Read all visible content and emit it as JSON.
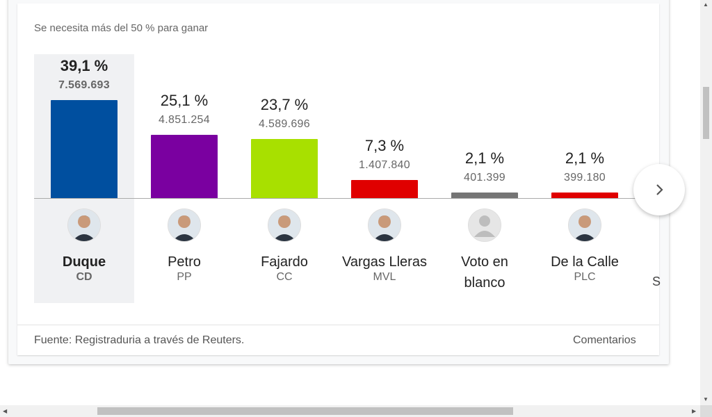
{
  "subtitle": "Se necesita más del 50 % para ganar",
  "candidates": [
    {
      "name": "Duque",
      "party": "CD",
      "pct": "39,1 %",
      "votes": "7.569.693",
      "share": 39.1,
      "color": "#004f9f",
      "selected": true
    },
    {
      "name": "Petro",
      "party": "PP",
      "pct": "25,1 %",
      "votes": "4.851.254",
      "share": 25.1,
      "color": "#7a00a0",
      "selected": false
    },
    {
      "name": "Fajardo",
      "party": "CC",
      "pct": "23,7 %",
      "votes": "4.589.696",
      "share": 23.7,
      "color": "#a8e000",
      "selected": false
    },
    {
      "name": "Vargas Lleras",
      "party": "MVL",
      "pct": "7,3 %",
      "votes": "1.407.840",
      "share": 7.3,
      "color": "#e00000",
      "selected": false
    },
    {
      "name": "Voto en blanco",
      "party": "",
      "pct": "2,1 %",
      "votes": "401.399",
      "share": 2.1,
      "color": "#757575",
      "selected": false
    },
    {
      "name": "De la Calle",
      "party": "PLC",
      "pct": "2,1 %",
      "votes": "399.180",
      "share": 2.1,
      "color": "#e00000",
      "selected": false
    }
  ],
  "next_candidate_peek": "S",
  "footer": {
    "source": "Fuente: Registraduria a través de Reuters.",
    "comments": "Comentarios"
  },
  "icons": {
    "next": "chevron-right-icon",
    "avatar_placeholder": "person-icon"
  }
}
